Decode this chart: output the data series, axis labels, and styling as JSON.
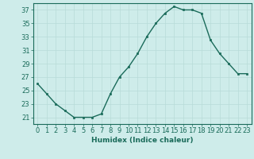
{
  "x": [
    0,
    1,
    2,
    3,
    4,
    5,
    6,
    7,
    8,
    9,
    10,
    11,
    12,
    13,
    14,
    15,
    16,
    17,
    18,
    19,
    20,
    21,
    22,
    23
  ],
  "y": [
    26,
    24.5,
    23,
    22,
    21,
    21,
    21,
    21.5,
    24.5,
    27,
    28.5,
    30.5,
    33,
    35,
    36.5,
    37.5,
    37,
    37,
    36.5,
    32.5,
    30.5,
    29,
    27.5,
    27.5
  ],
  "line_color": "#1a6b5a",
  "marker_color": "#1a6b5a",
  "bg_color": "#ceecea",
  "grid_color": "#b8dbd8",
  "xlabel": "Humidex (Indice chaleur)",
  "xlim": [
    -0.5,
    23.5
  ],
  "ylim": [
    20,
    38
  ],
  "yticks": [
    21,
    23,
    25,
    27,
    29,
    31,
    33,
    35,
    37
  ],
  "xticks": [
    0,
    1,
    2,
    3,
    4,
    5,
    6,
    7,
    8,
    9,
    10,
    11,
    12,
    13,
    14,
    15,
    16,
    17,
    18,
    19,
    20,
    21,
    22,
    23
  ],
  "xlabel_fontsize": 6.5,
  "tick_fontsize": 6.0,
  "linewidth": 1.0,
  "markersize": 2.0
}
